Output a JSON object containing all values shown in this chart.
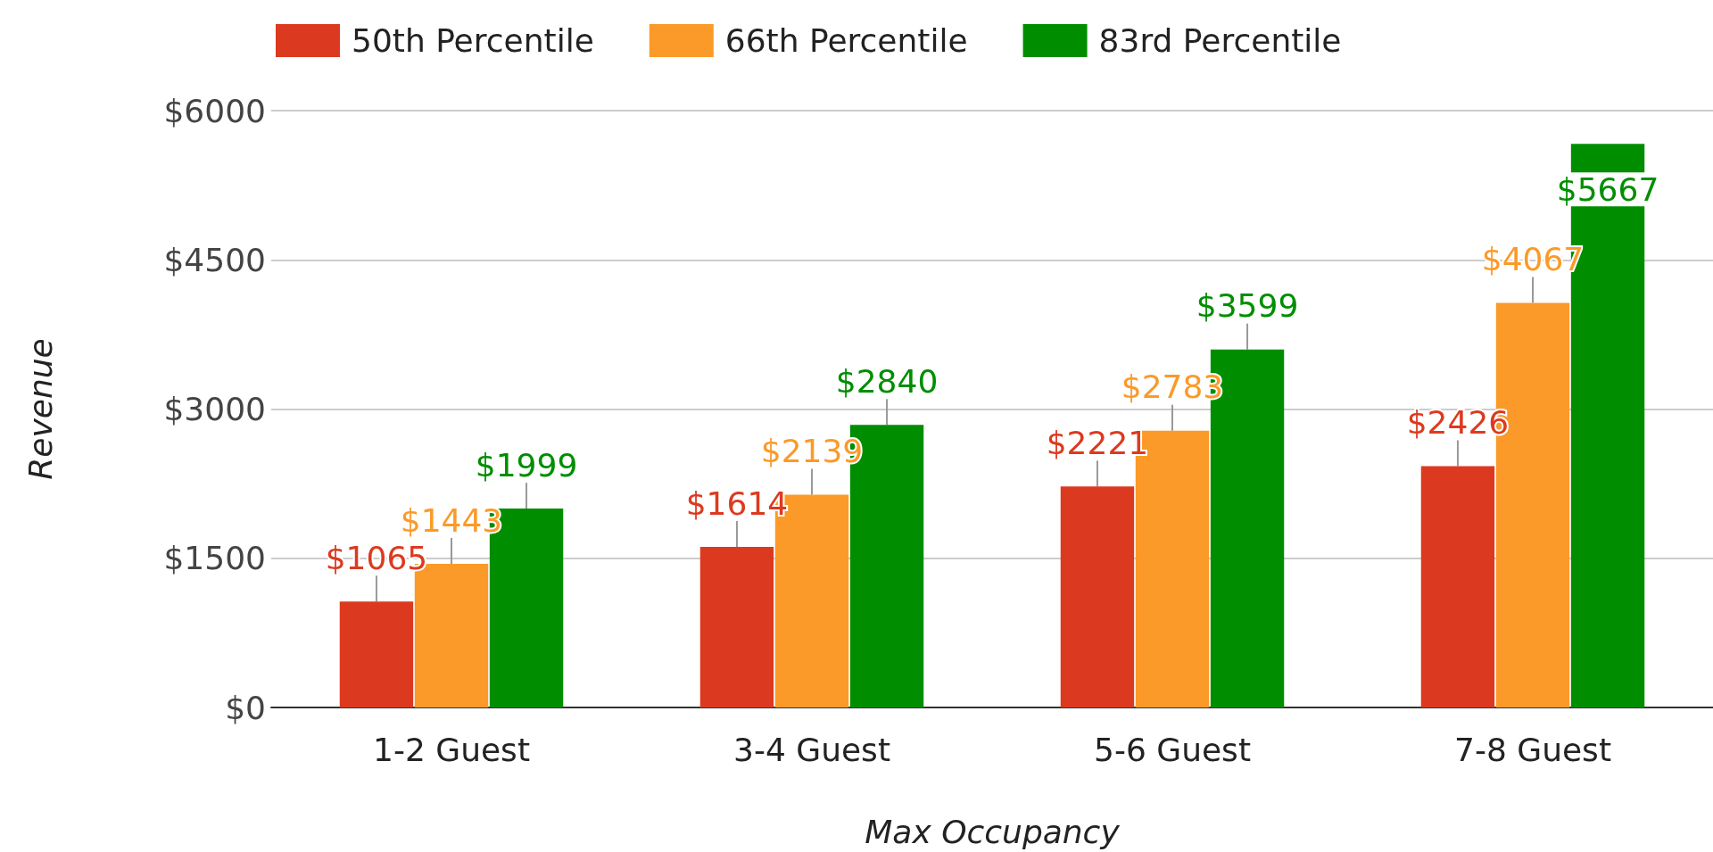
{
  "chart_data": {
    "type": "bar",
    "xlabel": "Max Occupancy",
    "ylabel": "Revenue",
    "categories": [
      "1-2 Guest",
      "3-4 Guest",
      "5-6 Guest",
      "7-8 Guest"
    ],
    "series": [
      {
        "name": "50th Percentile",
        "color": "#dc3a20",
        "values": [
          1065,
          1614,
          2221,
          2426
        ],
        "value_labels": [
          "$1065",
          "$1614",
          "$2221",
          "$2426"
        ]
      },
      {
        "name": "66th Percentile",
        "color": "#fb9a29",
        "values": [
          1443,
          2139,
          2783,
          4067
        ],
        "value_labels": [
          "$1443",
          "$2139",
          "$2783",
          "$4067"
        ]
      },
      {
        "name": "83rd Percentile",
        "color": "#008e00",
        "values": [
          1999,
          2840,
          3599,
          5667
        ],
        "value_labels": [
          "$1999",
          "$2840",
          "$3599",
          "$5667"
        ]
      }
    ],
    "ylim": [
      0,
      6000
    ],
    "yticks": [
      {
        "value": 0,
        "label": "$0"
      },
      {
        "value": 1500,
        "label": "$1500"
      },
      {
        "value": 3000,
        "label": "$3000"
      },
      {
        "value": 4500,
        "label": "$4500"
      },
      {
        "value": 6000,
        "label": "$6000"
      }
    ],
    "grid": "y",
    "legend": "top left"
  }
}
